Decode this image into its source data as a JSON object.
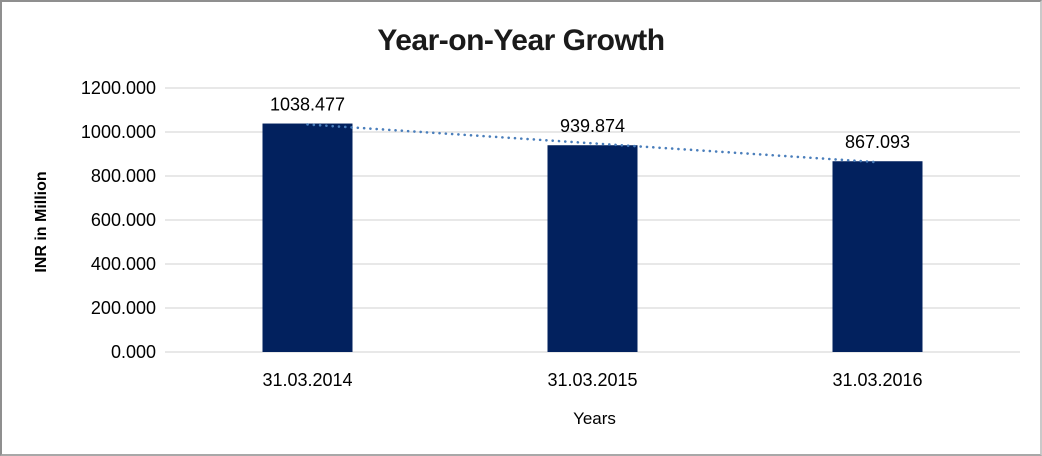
{
  "chart_data": {
    "type": "bar",
    "title": "Year-on-Year Growth",
    "xlabel": "Years",
    "ylabel": "INR in Million",
    "categories": [
      "31.03.2014",
      "31.03.2015",
      "31.03.2016"
    ],
    "values": [
      1038.477,
      939.874,
      867.093
    ],
    "value_labels": [
      "1038.477",
      "939.874",
      "867.093"
    ],
    "ylim": [
      0,
      1200
    ],
    "ytick_step": 200,
    "ytick_labels": [
      "0.000",
      "200.000",
      "400.000",
      "600.000",
      "800.000",
      "1000.000",
      "1200.000"
    ],
    "grid": "horizontal",
    "legend": "none",
    "trendline": {
      "type": "linear",
      "style": "dotted"
    },
    "colors": {
      "bar": "#02215e",
      "trendline": "#4a7ebb",
      "gridline": "#d9d9d9",
      "axis_line": "#d9d9d9",
      "text": "#000000",
      "background": "#ffffff"
    }
  }
}
